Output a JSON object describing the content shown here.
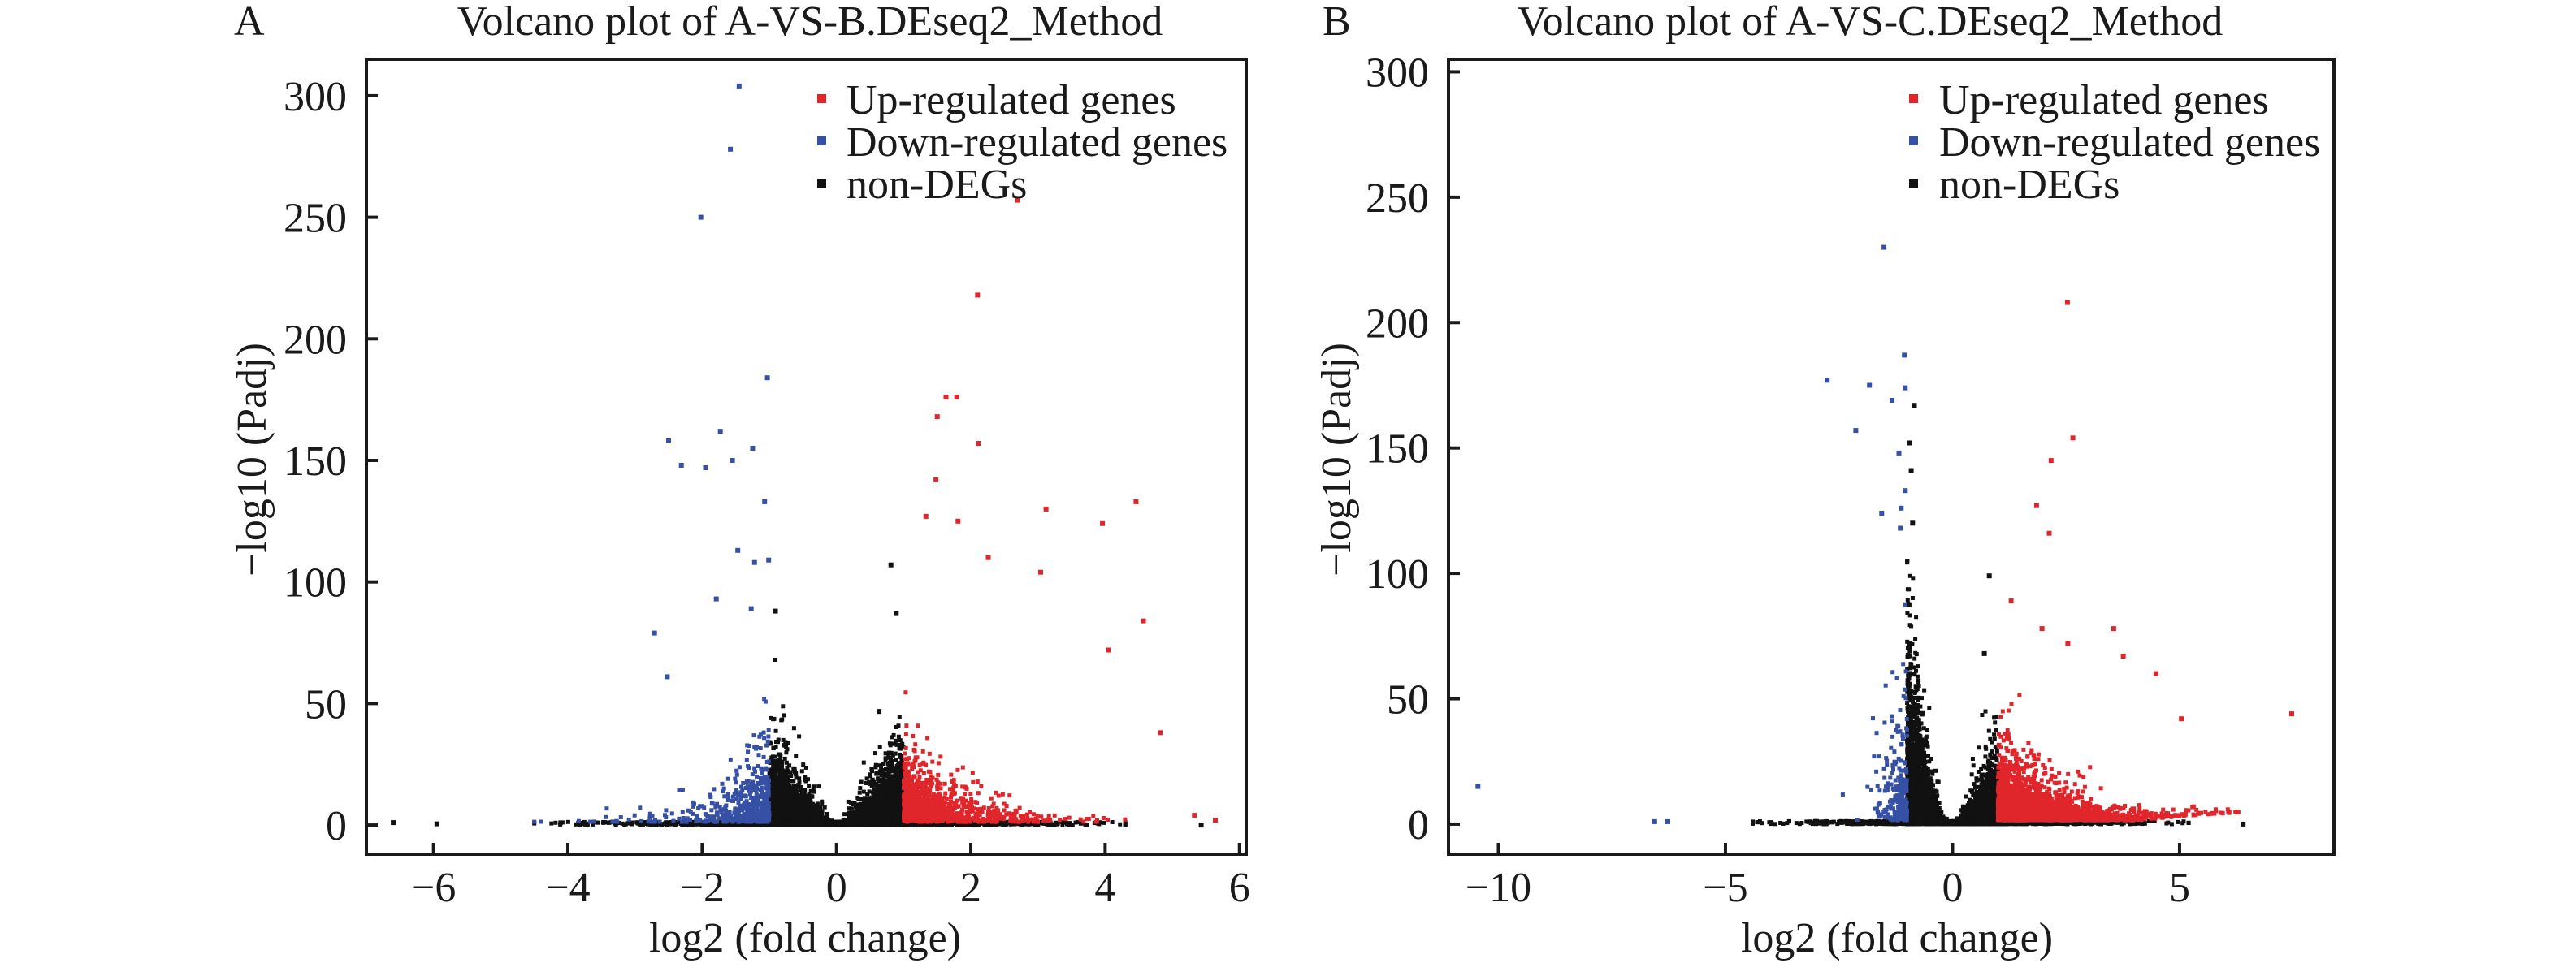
{
  "chart_data": [
    {
      "type": "scatter",
      "panel_label": "A",
      "title": "Volcano plot of A-VS-B.DEseq2_Method",
      "xlabel": "log2 (fold change)",
      "ylabel": "−log10 (Padj)",
      "xlim": [
        -7,
        6.1
      ],
      "ylim": [
        -12,
        315
      ],
      "xticks": [
        -6,
        -4,
        -2,
        0,
        2,
        4,
        6
      ],
      "xtick_labels": [
        "−6",
        "−4",
        "−2",
        "0",
        "2",
        "4",
        "6"
      ],
      "yticks": [
        0,
        50,
        100,
        150,
        200,
        250,
        300
      ],
      "ytick_labels": [
        "0",
        "50",
        "100",
        "150",
        "200",
        "250",
        "300"
      ],
      "grid": false,
      "legend_position": "top-right",
      "series": [
        {
          "name": "Up-regulated genes",
          "color": "#e0262b",
          "points": [
            [
              2.7,
              257
            ],
            [
              2.1,
              218
            ],
            [
              1.63,
              176
            ],
            [
              1.79,
              176
            ],
            [
              1.5,
              168
            ],
            [
              2.11,
              157
            ],
            [
              1.48,
              142
            ],
            [
              4.46,
              133
            ],
            [
              3.12,
              130
            ],
            [
              3.96,
              124
            ],
            [
              1.33,
              127
            ],
            [
              1.81,
              125
            ],
            [
              2.26,
              110
            ],
            [
              3.04,
              104
            ],
            [
              4.57,
              84
            ],
            [
              4.05,
              72
            ],
            [
              4.82,
              38
            ],
            [
              5.33,
              4
            ],
            [
              5.64,
              2
            ]
          ]
        },
        {
          "name": "Down-regulated genes",
          "color": "#3650a6",
          "points": [
            [
              -1.45,
              304
            ],
            [
              -1.58,
              278
            ],
            [
              -2.02,
              250
            ],
            [
              -1.03,
              184
            ],
            [
              -2.5,
              158
            ],
            [
              -1.73,
              162
            ],
            [
              -1.25,
              155
            ],
            [
              -2.31,
              148
            ],
            [
              -1.95,
              147
            ],
            [
              -1.55,
              150
            ],
            [
              -1.07,
              133
            ],
            [
              -1.47,
              113
            ],
            [
              -1.01,
              109
            ],
            [
              -1.22,
              108
            ],
            [
              -1.79,
              93
            ],
            [
              -2.71,
              79
            ],
            [
              -2.52,
              61
            ],
            [
              -1.27,
              89
            ]
          ]
        },
        {
          "name": "non-DEGs",
          "color": "#111111",
          "points": [
            [
              0.81,
              107
            ],
            [
              -0.91,
              88
            ],
            [
              0.89,
              87
            ],
            [
              -6.6,
              1
            ],
            [
              -5.95,
              0.5
            ],
            [
              5.43,
              0
            ]
          ]
        }
      ]
    },
    {
      "type": "scatter",
      "panel_label": "B",
      "title": "Volcano plot of A-VS-C.DEseq2_Method",
      "xlabel": "log2 (fold change)",
      "ylabel": "−log10 (Padj)",
      "xlim": [
        -11.1,
        8.4
      ],
      "ylim": [
        -12,
        305
      ],
      "xticks": [
        -10,
        -5,
        0,
        5
      ],
      "xtick_labels": [
        "−10",
        "−5",
        "0",
        "5"
      ],
      "yticks": [
        0,
        50,
        100,
        150,
        200,
        250,
        300
      ],
      "ytick_labels": [
        "0",
        "50",
        "100",
        "150",
        "200",
        "250",
        "300"
      ],
      "grid": false,
      "legend_position": "top-right",
      "series": [
        {
          "name": "Up-regulated genes",
          "color": "#e0262b",
          "points": [
            [
              2.53,
              208
            ],
            [
              2.65,
              154
            ],
            [
              2.17,
              145
            ],
            [
              1.85,
              127
            ],
            [
              2.13,
              116
            ],
            [
              1.29,
              89
            ],
            [
              7.47,
              44
            ],
            [
              3.55,
              78
            ],
            [
              3.76,
              67
            ],
            [
              4.48,
              60
            ],
            [
              5.04,
              42
            ],
            [
              1.97,
              78
            ],
            [
              2.54,
              72
            ]
          ]
        },
        {
          "name": "Down-regulated genes",
          "color": "#3650a6",
          "points": [
            [
              -1.51,
              230
            ],
            [
              -1.06,
              187
            ],
            [
              -2.76,
              177
            ],
            [
              -1.83,
              175
            ],
            [
              -1.04,
              174
            ],
            [
              -1.33,
              169
            ],
            [
              -2.13,
              157
            ],
            [
              -1.18,
              148
            ],
            [
              -1.04,
              133
            ],
            [
              -1.56,
              124
            ],
            [
              -1.13,
              126
            ],
            [
              -1.15,
              118
            ],
            [
              -10.45,
              15
            ],
            [
              -6.56,
              1
            ],
            [
              -6.27,
              1
            ]
          ]
        },
        {
          "name": "non-DEGs",
          "color": "#111111",
          "points": [
            [
              -0.84,
              167
            ],
            [
              -0.95,
              152
            ],
            [
              -0.91,
              141
            ],
            [
              -0.88,
              120
            ],
            [
              0.81,
              99
            ],
            [
              0.7,
              68
            ],
            [
              6.4,
              0
            ]
          ]
        }
      ]
    }
  ]
}
